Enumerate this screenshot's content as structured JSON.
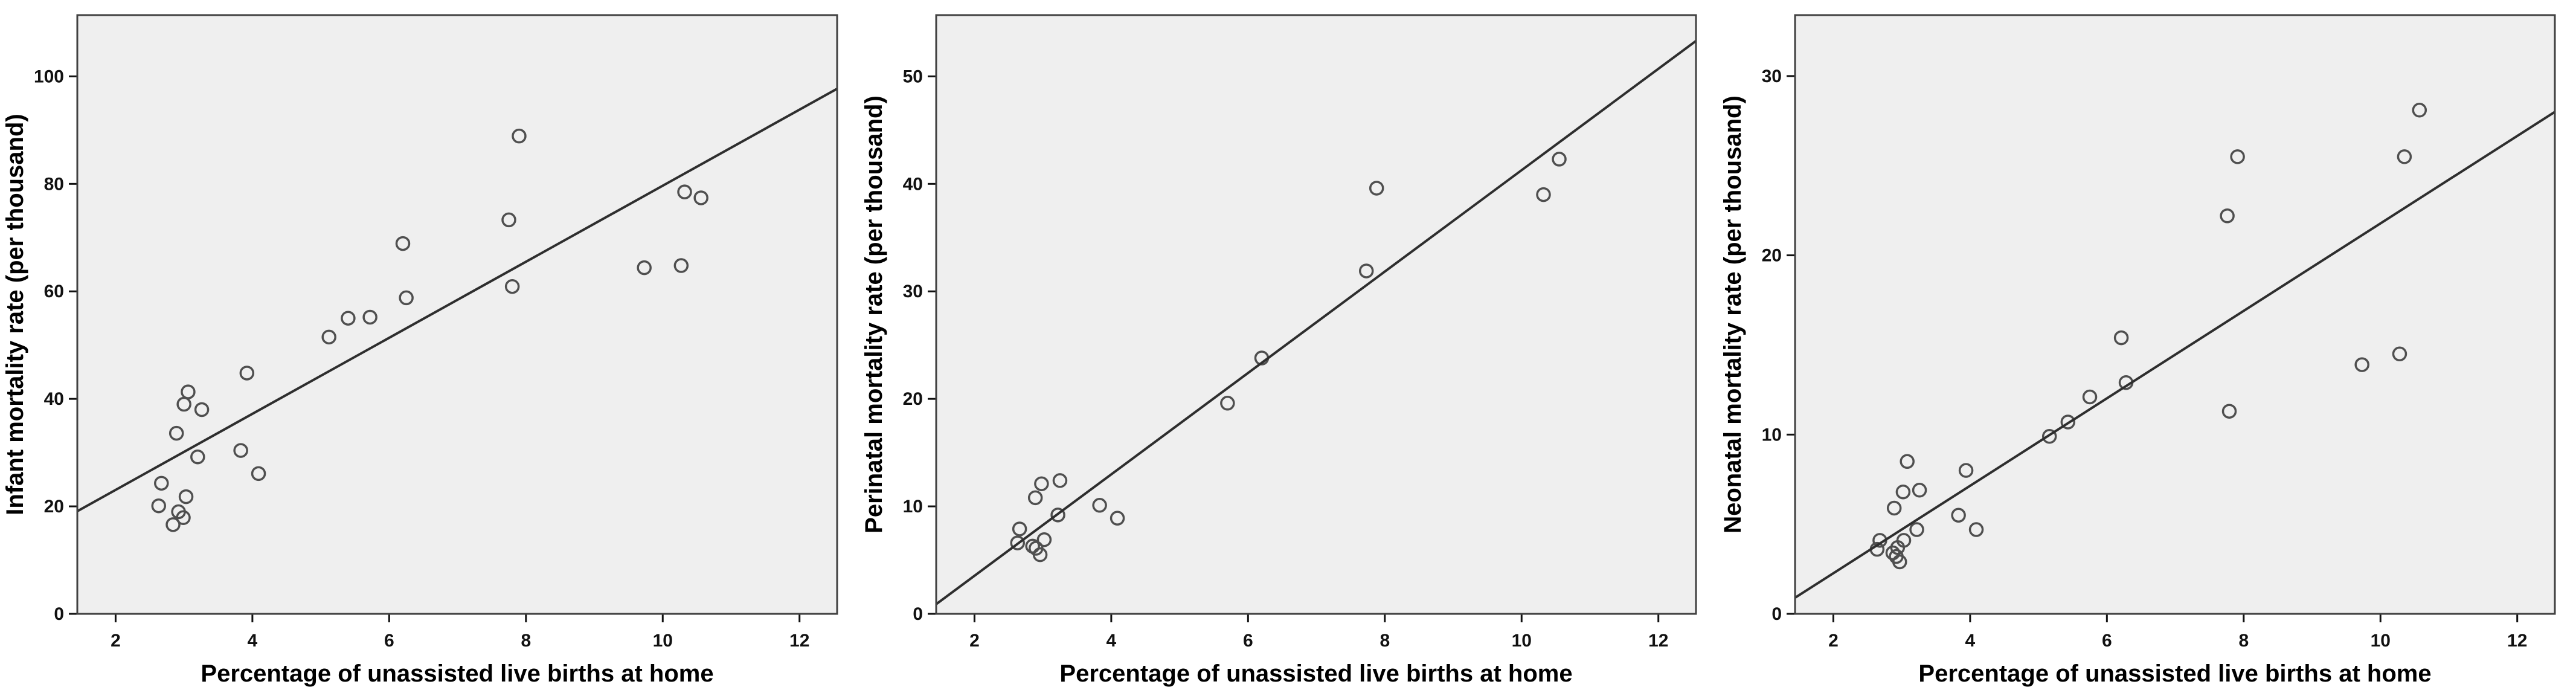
{
  "style": {
    "plot_bg": "#efefef",
    "frame_color": "#404040",
    "tick_color": "#111111",
    "marker_color": "#4f4f4f",
    "fit_line_color": "#2e2e2e"
  },
  "chart_data": [
    {
      "type": "scatter",
      "title": "",
      "xlabel": "Percentage of unassisted live births at home",
      "ylabel": "Infant mortality rate (per thousand)",
      "xlim": [
        1.44,
        12.55
      ],
      "ylim": [
        0,
        111.4
      ],
      "xticks": [
        2,
        4,
        6,
        8,
        10,
        12
      ],
      "yticks": [
        0,
        20,
        40,
        60,
        80,
        100
      ],
      "grid": false,
      "fit_line": {
        "x": [
          1.44,
          12.55
        ],
        "y": [
          19.1,
          97.7
        ]
      },
      "points": [
        [
          2.63,
          20.1
        ],
        [
          2.67,
          24.3
        ],
        [
          2.84,
          16.6
        ],
        [
          2.89,
          33.6
        ],
        [
          2.92,
          19.0
        ],
        [
          2.99,
          17.9
        ],
        [
          3.0,
          39.0
        ],
        [
          3.03,
          21.8
        ],
        [
          3.06,
          41.3
        ],
        [
          3.2,
          29.2
        ],
        [
          3.26,
          38.0
        ],
        [
          3.83,
          30.4
        ],
        [
          3.92,
          44.8
        ],
        [
          4.09,
          26.1
        ],
        [
          5.12,
          51.5
        ],
        [
          5.4,
          55.0
        ],
        [
          5.72,
          55.2
        ],
        [
          6.2,
          68.9
        ],
        [
          6.25,
          58.8
        ],
        [
          7.75,
          73.3
        ],
        [
          7.8,
          60.9
        ],
        [
          7.9,
          88.9
        ],
        [
          9.73,
          64.4
        ],
        [
          10.27,
          64.8
        ],
        [
          10.32,
          78.5
        ],
        [
          10.56,
          77.4
        ]
      ]
    },
    {
      "type": "scatter",
      "title": "",
      "xlabel": "Percentage of unassisted live births at home",
      "ylabel": "Perinatal mortality rate (per thousand)",
      "xlim": [
        1.44,
        12.55
      ],
      "ylim": [
        0,
        55.7
      ],
      "xticks": [
        2,
        4,
        6,
        8,
        10,
        12
      ],
      "yticks": [
        0,
        10,
        20,
        30,
        40,
        50
      ],
      "grid": false,
      "fit_line": {
        "x": [
          1.44,
          12.55
        ],
        "y": [
          0.9,
          53.3
        ]
      },
      "points": [
        [
          2.63,
          6.6
        ],
        [
          2.66,
          7.9
        ],
        [
          2.85,
          6.3
        ],
        [
          2.89,
          10.8
        ],
        [
          2.9,
          6.1
        ],
        [
          2.96,
          5.5
        ],
        [
          2.98,
          12.1
        ],
        [
          3.02,
          6.9
        ],
        [
          3.22,
          9.2
        ],
        [
          3.25,
          12.4
        ],
        [
          3.83,
          10.1
        ],
        [
          4.09,
          8.9
        ],
        [
          5.7,
          19.6
        ],
        [
          6.2,
          23.8
        ],
        [
          7.73,
          31.9
        ],
        [
          7.88,
          39.6
        ],
        [
          10.32,
          39.0
        ],
        [
          10.55,
          42.3
        ]
      ]
    },
    {
      "type": "scatter",
      "title": "",
      "xlabel": "Percentage of unassisted live births at home",
      "ylabel": "Neonatal mortality rate (per thousand)",
      "xlim": [
        1.44,
        12.55
      ],
      "ylim": [
        0,
        33.4
      ],
      "xticks": [
        2,
        4,
        6,
        8,
        10,
        12
      ],
      "yticks": [
        0,
        10,
        20,
        30
      ],
      "grid": false,
      "fit_line": {
        "x": [
          1.44,
          12.55
        ],
        "y": [
          0.9,
          28.0
        ]
      },
      "points": [
        [
          2.64,
          3.6
        ],
        [
          2.68,
          4.1
        ],
        [
          2.87,
          3.4
        ],
        [
          2.89,
          5.9
        ],
        [
          2.92,
          3.2
        ],
        [
          2.94,
          3.7
        ],
        [
          2.97,
          2.9
        ],
        [
          3.02,
          6.8
        ],
        [
          3.03,
          4.1
        ],
        [
          3.08,
          8.5
        ],
        [
          3.22,
          4.7
        ],
        [
          3.26,
          6.9
        ],
        [
          3.83,
          5.5
        ],
        [
          3.94,
          8.0
        ],
        [
          4.09,
          4.7
        ],
        [
          5.16,
          9.9
        ],
        [
          5.43,
          10.7
        ],
        [
          5.75,
          12.1
        ],
        [
          6.21,
          15.4
        ],
        [
          6.28,
          12.9
        ],
        [
          7.76,
          22.2
        ],
        [
          7.79,
          11.3
        ],
        [
          7.91,
          25.5
        ],
        [
          9.73,
          13.9
        ],
        [
          10.28,
          14.5
        ],
        [
          10.35,
          25.5
        ],
        [
          10.57,
          28.1
        ]
      ]
    }
  ]
}
